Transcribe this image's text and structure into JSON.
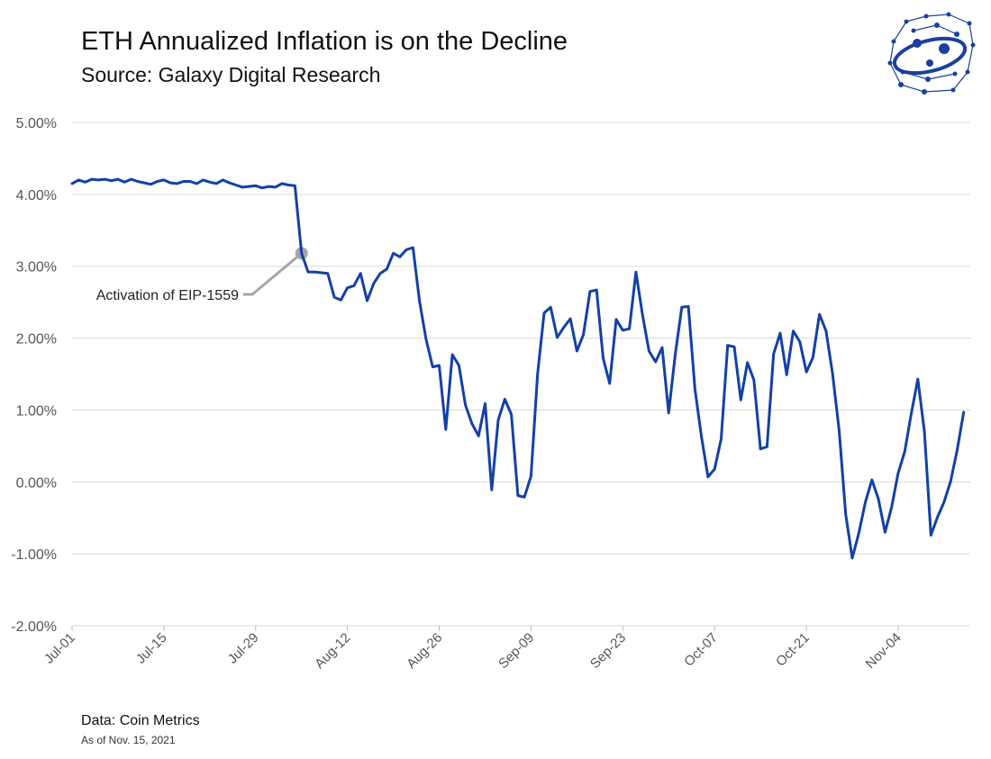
{
  "header": {
    "title": "ETH Annualized Inflation is on the Decline",
    "subtitle": "Source: Galaxy Digital Research"
  },
  "footer": {
    "source": "Data: Coin Metrics",
    "date": "As of Nov. 15, 2021"
  },
  "colors": {
    "series": "#1340a8",
    "annotation": "#a6a6a6",
    "grid": "#d9d9d9",
    "logo": "#1a3fa0"
  },
  "logo": {
    "icon": "galaxy-orbit-network-icon"
  },
  "chart_data": {
    "type": "line",
    "title": "ETH Annualized Inflation is on the Decline",
    "xlabel": "",
    "ylabel": "",
    "ylim": [
      -2.0,
      5.0
    ],
    "yticks": [
      5.0,
      4.0,
      3.0,
      2.0,
      1.0,
      0.0,
      -1.0,
      -2.0
    ],
    "ytick_labels": [
      "5.00%",
      "4.00%",
      "3.00%",
      "2.00%",
      "1.00%",
      "0.00%",
      "-1.00%",
      "-2.00%"
    ],
    "xlim_days": [
      0,
      137
    ],
    "x_start": "Jul-01",
    "xticks_days": [
      0,
      14,
      28,
      42,
      56,
      70,
      84,
      98,
      112,
      126
    ],
    "xtick_labels": [
      "Jul-01",
      "Jul-15",
      "Jul-29",
      "Aug-12",
      "Aug-26",
      "Sep-09",
      "Sep-23",
      "Oct-07",
      "Oct-21",
      "Nov-04"
    ],
    "grid": "horizontal",
    "series": [
      {
        "name": "ETH Annualized Inflation",
        "x_days": [
          0,
          1,
          2,
          3,
          4,
          5,
          6,
          7,
          8,
          9,
          10,
          11,
          12,
          13,
          14,
          15,
          16,
          17,
          18,
          19,
          20,
          21,
          22,
          23,
          24,
          25,
          26,
          27,
          28,
          29,
          30,
          31,
          32,
          33,
          34,
          35,
          36,
          37,
          38,
          39,
          40,
          41,
          42,
          43,
          44,
          45,
          46,
          47,
          48,
          49,
          50,
          51,
          52,
          53,
          54,
          55,
          56,
          57,
          58,
          59,
          60,
          61,
          62,
          63,
          64,
          65,
          66,
          67,
          68,
          69,
          70,
          71,
          72,
          73,
          74,
          75,
          76,
          77,
          78,
          79,
          80,
          81,
          82,
          83,
          84,
          85,
          86,
          87,
          88,
          89,
          90,
          91,
          92,
          93,
          94,
          95,
          96,
          97,
          98,
          99,
          100,
          101,
          102,
          103,
          104,
          105,
          106,
          107,
          108,
          109,
          110,
          111,
          112,
          113,
          114,
          115,
          116,
          117,
          118,
          119,
          120,
          121,
          122,
          123,
          124,
          125,
          126,
          127,
          128,
          129,
          130,
          131,
          132,
          133,
          134,
          135,
          136
        ],
        "values": [
          4.15,
          4.2,
          4.17,
          4.21,
          4.2,
          4.21,
          4.19,
          4.21,
          4.17,
          4.21,
          4.18,
          4.16,
          4.14,
          4.18,
          4.2,
          4.16,
          4.15,
          4.18,
          4.18,
          4.15,
          4.2,
          4.17,
          4.15,
          4.2,
          4.16,
          4.13,
          4.1,
          4.11,
          4.12,
          4.09,
          4.11,
          4.1,
          4.15,
          4.13,
          4.12,
          3.18,
          2.92,
          2.92,
          2.91,
          2.9,
          2.57,
          2.53,
          2.7,
          2.73,
          2.9,
          2.52,
          2.76,
          2.9,
          2.96,
          3.18,
          3.13,
          3.23,
          3.26,
          2.51,
          1.98,
          1.6,
          1.62,
          0.73,
          1.77,
          1.62,
          1.07,
          0.81,
          0.64,
          1.09,
          -0.11,
          0.86,
          1.15,
          0.94,
          -0.19,
          -0.21,
          0.08,
          1.5,
          2.35,
          2.43,
          2.01,
          2.15,
          2.27,
          1.82,
          2.05,
          2.65,
          2.67,
          1.72,
          1.37,
          2.26,
          2.11,
          2.13,
          2.92,
          2.33,
          1.82,
          1.67,
          1.87,
          0.96,
          1.77,
          2.43,
          2.44,
          1.29,
          0.63,
          0.07,
          0.18,
          0.6,
          1.9,
          1.88,
          1.14,
          1.66,
          1.42,
          0.46,
          0.49,
          1.78,
          2.07,
          1.49,
          2.1,
          1.95,
          1.53,
          1.73,
          2.33,
          2.1,
          1.5,
          0.71,
          -0.45,
          -1.06,
          -0.71,
          -0.28,
          0.03,
          -0.24,
          -0.7,
          -0.35,
          0.12,
          0.42,
          0.95,
          1.43,
          0.7,
          -0.74,
          -0.49,
          -0.28,
          0.01,
          0.44,
          0.97
        ]
      }
    ],
    "annotations": [
      {
        "text": "Activation of EIP-1559",
        "x_day": 35,
        "value": 3.18
      }
    ]
  }
}
